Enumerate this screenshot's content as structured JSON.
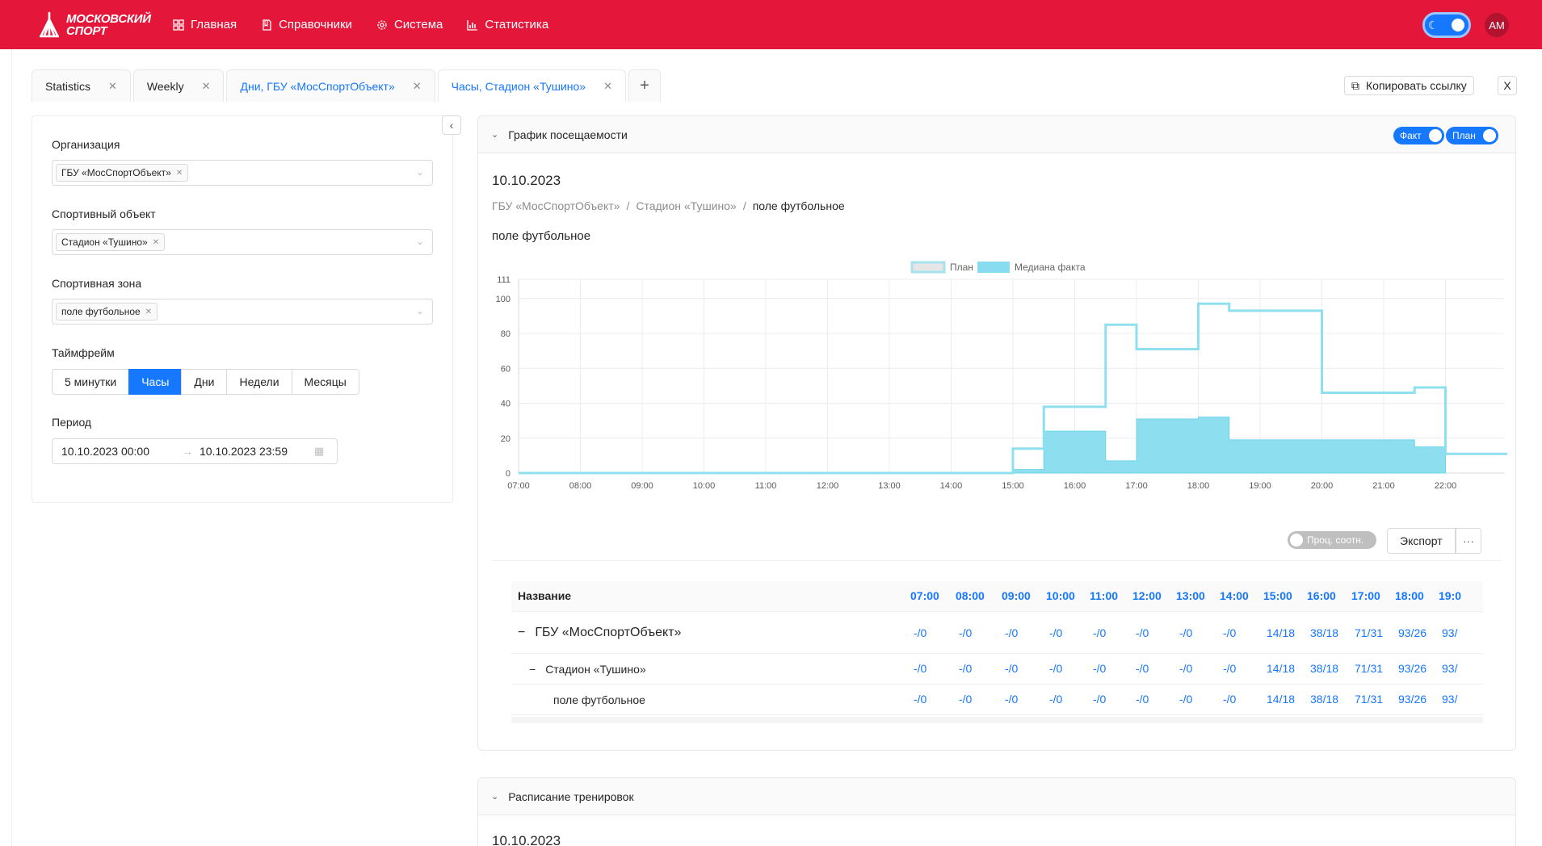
{
  "header": {
    "logo_line1": "МОСКОВСКИЙ",
    "logo_line2": "СПОРТ",
    "nav": [
      {
        "label": "Главная",
        "icon": "grid-icon"
      },
      {
        "label": "Справочники",
        "icon": "book-icon"
      },
      {
        "label": "Система",
        "icon": "gear-icon"
      },
      {
        "label": "Статистика",
        "icon": "bar-chart-icon"
      }
    ],
    "avatar": "AM",
    "brand_color": "#e4173a"
  },
  "tabs": [
    {
      "label": "Statistics"
    },
    {
      "label": "Weekly"
    },
    {
      "label": "Дни, ГБУ «МосСпортОбъект»"
    },
    {
      "label": "Часы, Стадион «Тушино»"
    }
  ],
  "copy_link": "Копировать ссылку",
  "close_all": "X",
  "filters": {
    "org_label": "Организация",
    "org_value": "ГБУ «МосСпортОбъект»",
    "object_label": "Спортивный объект",
    "object_value": "Стадион «Тушино»",
    "zone_label": "Спортивная зона",
    "zone_value": "поле футбольное",
    "timeframe_label": "Таймфрейм",
    "timeframes": [
      "5 минутки",
      "Часы",
      "Дни",
      "Недели",
      "Месяцы"
    ],
    "timeframe_selected": "Часы",
    "period_label": "Период",
    "period_from": "10.10.2023 00:00",
    "period_to": "10.10.2023 23:59"
  },
  "attendance": {
    "title": "График посещаемости",
    "toggle_fact": "Факт",
    "toggle_plan": "План",
    "date": "10.10.2023",
    "breadcrumb": [
      "ГБУ «МосСпортОбъект»",
      "Стадион «Тушино»",
      "поле футбольное"
    ],
    "zone_title": "поле футбольное",
    "proc_label": "Проц. соотн.",
    "export_label": "Экспорт",
    "more_label": "···"
  },
  "chart_data": {
    "type": "area",
    "legend": [
      "План",
      "Медиана факта"
    ],
    "legend_position": "top",
    "x_ticks": [
      "07:00",
      "08:00",
      "09:00",
      "10:00",
      "11:00",
      "12:00",
      "13:00",
      "14:00",
      "15:00",
      "16:00",
      "17:00",
      "18:00",
      "19:00",
      "20:00",
      "21:00",
      "22:00"
    ],
    "y_ticks": [
      0,
      20,
      40,
      60,
      80,
      100,
      111
    ],
    "ylim": [
      0,
      111
    ],
    "xlim_hours": [
      7,
      23
    ],
    "colors": {
      "plan": "#8fe0ee",
      "fact": "#87ddef"
    },
    "series": [
      {
        "name": "План",
        "points": [
          [
            7,
            0
          ],
          [
            15,
            0
          ],
          [
            15,
            14
          ],
          [
            15.5,
            14
          ],
          [
            15.5,
            38
          ],
          [
            16.5,
            38
          ],
          [
            16.5,
            85
          ],
          [
            17,
            85
          ],
          [
            17,
            71
          ],
          [
            18,
            71
          ],
          [
            18,
            97
          ],
          [
            18.5,
            97
          ],
          [
            18.5,
            93
          ],
          [
            20,
            93
          ],
          [
            20,
            46
          ],
          [
            21.5,
            46
          ],
          [
            21.5,
            49
          ],
          [
            22,
            49
          ],
          [
            22,
            11
          ],
          [
            23,
            11
          ]
        ]
      },
      {
        "name": "Медиана факта",
        "points": [
          [
            7,
            0
          ],
          [
            15,
            0
          ],
          [
            15,
            2
          ],
          [
            15.5,
            2
          ],
          [
            15.5,
            24
          ],
          [
            16.5,
            24
          ],
          [
            16.5,
            7
          ],
          [
            17,
            7
          ],
          [
            17,
            31
          ],
          [
            18,
            31
          ],
          [
            18,
            32
          ],
          [
            18.5,
            32
          ],
          [
            18.5,
            19
          ],
          [
            21.5,
            19
          ],
          [
            21.5,
            15
          ],
          [
            22,
            15
          ],
          [
            22,
            0
          ]
        ]
      }
    ]
  },
  "table": {
    "name_header": "Название",
    "time_headers": [
      "07:00",
      "08:00",
      "09:00",
      "10:00",
      "11:00",
      "12:00",
      "13:00",
      "14:00",
      "15:00",
      "16:00",
      "17:00",
      "18:00",
      "19:0"
    ],
    "rows": [
      {
        "toggle": "−",
        "name": "ГБУ «МосСпортОбъект»",
        "values": [
          "-/0",
          "-/0",
          "-/0",
          "-/0",
          "-/0",
          "-/0",
          "-/0",
          "-/0",
          "14/18",
          "38/18",
          "71/31",
          "93/26",
          "93/"
        ]
      },
      {
        "toggle": "−",
        "name": "Стадион «Тушино»",
        "values": [
          "-/0",
          "-/0",
          "-/0",
          "-/0",
          "-/0",
          "-/0",
          "-/0",
          "-/0",
          "14/18",
          "38/18",
          "71/31",
          "93/26",
          "93/"
        ]
      },
      {
        "toggle": "",
        "name": "поле футбольное",
        "values": [
          "-/0",
          "-/0",
          "-/0",
          "-/0",
          "-/0",
          "-/0",
          "-/0",
          "-/0",
          "14/18",
          "38/18",
          "71/31",
          "93/26",
          "93/"
        ]
      }
    ]
  },
  "schedule": {
    "title": "Расписание тренировок",
    "date": "10.10.2023"
  }
}
